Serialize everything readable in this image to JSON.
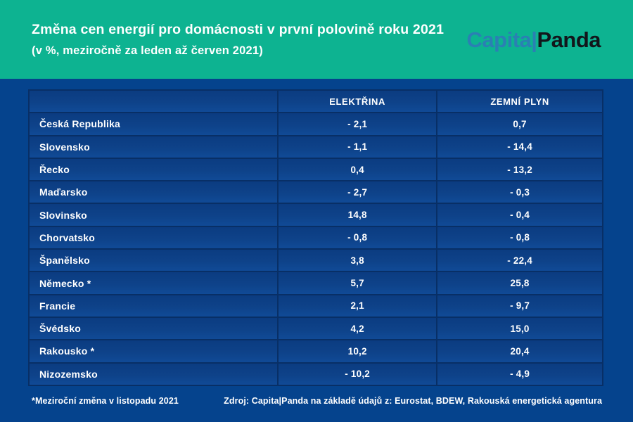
{
  "header": {
    "title": "Změna cen energií pro domácnosti v první polovině roku 2021",
    "subtitle": "(v %, meziročně za leden až červen 2021)",
    "logo": {
      "part1": "Capita|",
      "part2": "Panda"
    }
  },
  "table": {
    "columns": {
      "country": "",
      "electricity": "ELEKTŘINA",
      "gas": "ZEMNÍ PLYN"
    },
    "rows": [
      {
        "country": "Česká Republika",
        "electricity": "- 2,1",
        "gas": "0,7"
      },
      {
        "country": "Slovensko",
        "electricity": "- 1,1",
        "gas": "- 14,4"
      },
      {
        "country": "Řecko",
        "electricity": "0,4",
        "gas": "- 13,2"
      },
      {
        "country": "Maďarsko",
        "electricity": "- 2,7",
        "gas": "- 0,3"
      },
      {
        "country": "Slovinsko",
        "electricity": "14,8",
        "gas": "- 0,4"
      },
      {
        "country": "Chorvatsko",
        "electricity": "- 0,8",
        "gas": "- 0,8"
      },
      {
        "country": "Španělsko",
        "electricity": "3,8",
        "gas": "- 22,4"
      },
      {
        "country": "Německo *",
        "electricity": "5,7",
        "gas": "25,8"
      },
      {
        "country": "Francie",
        "electricity": "2,1",
        "gas": "- 9,7"
      },
      {
        "country": "Švédsko",
        "electricity": "4,2",
        "gas": "15,0"
      },
      {
        "country": "Rakousko *",
        "electricity": "10,2",
        "gas": "20,4"
      },
      {
        "country": "Nizozemsko",
        "electricity": "- 10,2",
        "gas": "- 4,9"
      }
    ]
  },
  "footer": {
    "footnote": "*Meziroční změna v listopadu 2021",
    "source": "Zdroj: Capita|Panda na základě údajů z: Eurostat, BDEW, Rakouská energetická agentura"
  },
  "colors": {
    "header_green": "#0db391",
    "body_blue": "#05438d",
    "cell_blue": "#0e4289",
    "grid_navy": "#082f66",
    "logo_blue": "#2f7ab8",
    "logo_black": "#12161b",
    "text": "#ffffff"
  },
  "chart_data": {
    "type": "table",
    "title": "Změna cen energií pro domácnosti v první polovině roku 2021",
    "subtitle": "(v %, meziročně za leden až červen 2021)",
    "unit": "% (meziročně, leden–červen 2021)",
    "columns": [
      "",
      "ELEKTŘINA",
      "ZEMNÍ PLYN"
    ],
    "categories": [
      "Česká Republika",
      "Slovensko",
      "Řecko",
      "Maďarsko",
      "Slovinsko",
      "Chorvatsko",
      "Španělsko",
      "Německo *",
      "Francie",
      "Švédsko",
      "Rakousko *",
      "Nizozemsko"
    ],
    "series": [
      {
        "name": "ELEKTŘINA",
        "values": [
          -2.1,
          -1.1,
          0.4,
          -2.7,
          14.8,
          -0.8,
          3.8,
          5.7,
          2.1,
          4.2,
          10.2,
          -10.2
        ]
      },
      {
        "name": "ZEMNÍ PLYN",
        "values": [
          0.7,
          -14.4,
          -13.2,
          -0.3,
          -0.4,
          -0.8,
          -22.4,
          25.8,
          -9.7,
          15.0,
          20.4,
          -4.9
        ]
      }
    ],
    "footnote": "*Meziroční změna v listopadu 2021",
    "source": "Zdroj: Capita|Panda na základě údajů z: Eurostat, BDEW, Rakouská energetická agentura"
  }
}
